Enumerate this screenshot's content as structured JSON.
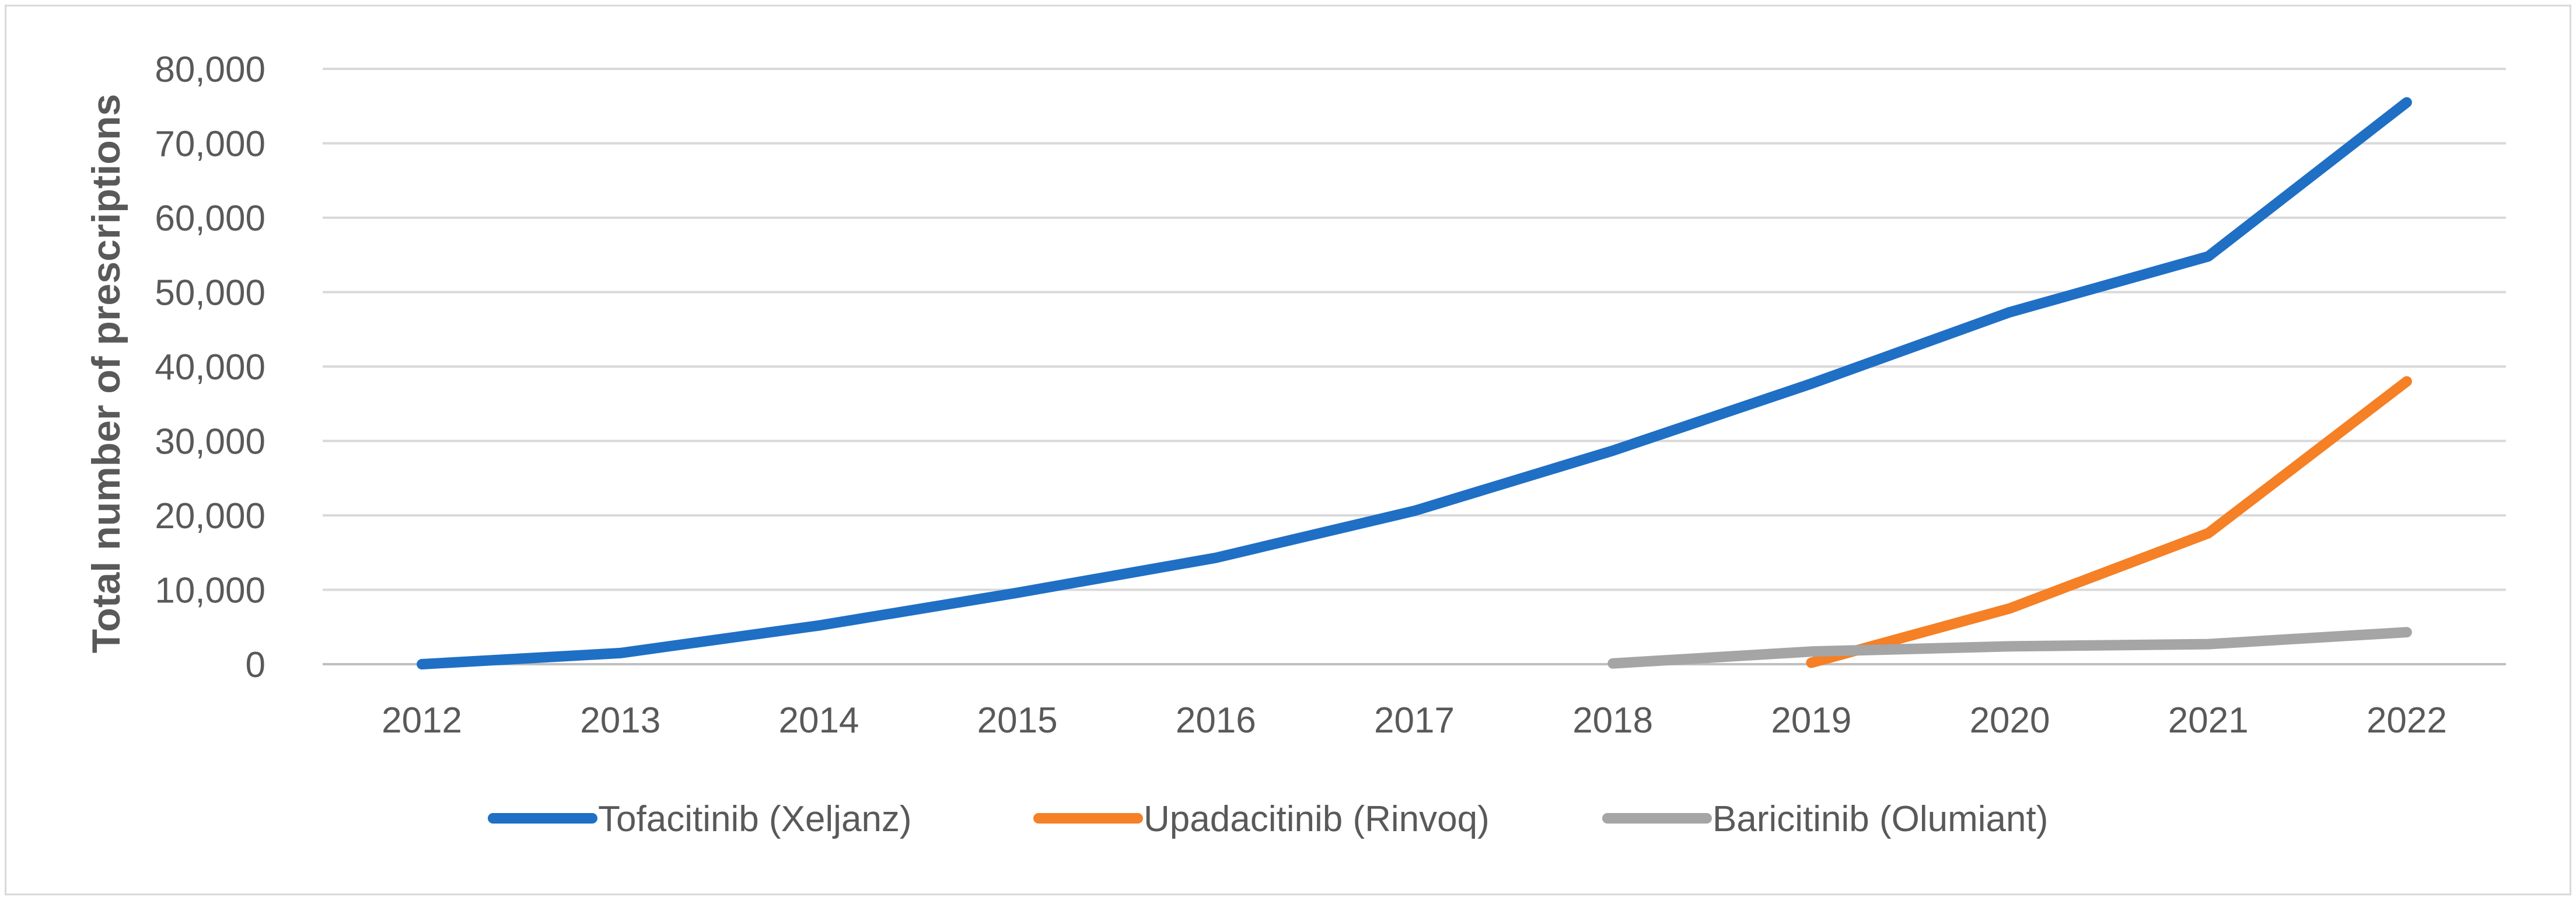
{
  "chart_data": {
    "type": "line",
    "title": "",
    "xlabel": "",
    "ylabel": "Total number of prescriptions",
    "x": [
      "2012",
      "2013",
      "2014",
      "2015",
      "2016",
      "2017",
      "2018",
      "2019",
      "2020",
      "2021",
      "2022"
    ],
    "ylim": [
      0,
      80000
    ],
    "yticks": [
      0,
      10000,
      20000,
      30000,
      40000,
      50000,
      60000,
      70000,
      80000
    ],
    "ytick_labels": [
      "0",
      "10,000",
      "20,000",
      "30,000",
      "40,000",
      "50,000",
      "60,000",
      "70,000",
      "80,000"
    ],
    "grid": true,
    "legend_position": "bottom",
    "series": [
      {
        "name": "Tofacitinib (Xeljanz)",
        "color": "#1f6fc5",
        "values": [
          0,
          1500,
          5200,
          9600,
          14300,
          20600,
          28700,
          37700,
          47300,
          54800,
          75500
        ]
      },
      {
        "name": "Upadacitinib (Rinvoq)",
        "color": "#f58025",
        "values": [
          null,
          null,
          null,
          null,
          null,
          null,
          null,
          200,
          7500,
          17600,
          38000
        ]
      },
      {
        "name": "Baricitinib (Olumiant)",
        "color": "#a5a5a5",
        "values": [
          null,
          null,
          null,
          null,
          null,
          null,
          100,
          1700,
          2400,
          2700,
          4300
        ]
      }
    ]
  }
}
